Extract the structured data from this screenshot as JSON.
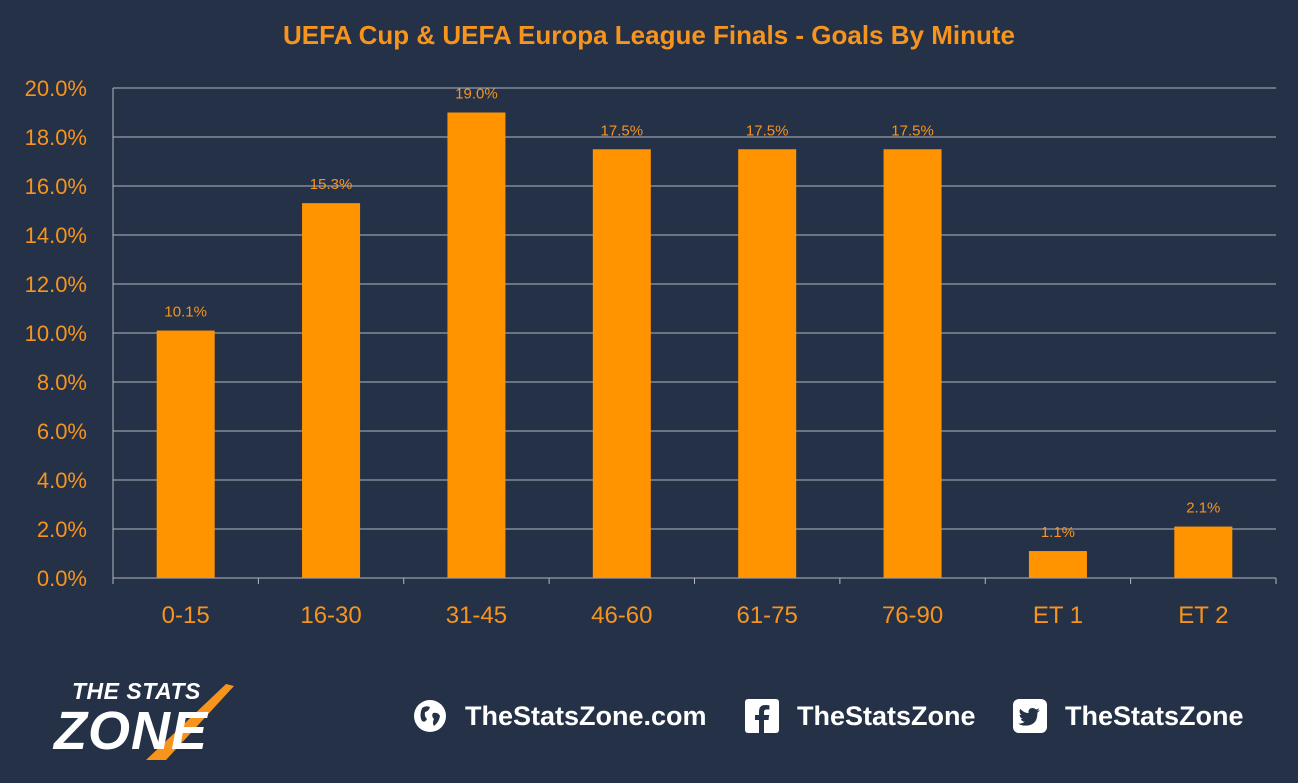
{
  "chart_data": {
    "type": "bar",
    "title": "UEFA Cup & UEFA Europa  League Finals - Goals By Minute",
    "categories": [
      "0-15",
      "16-30",
      "31-45",
      "46-60",
      "61-75",
      "76-90",
      "ET 1",
      "ET 2"
    ],
    "values": [
      10.1,
      15.3,
      19.0,
      17.5,
      17.5,
      17.5,
      1.1,
      2.1
    ],
    "data_labels": [
      "10.1%",
      "15.3%",
      "19.0%",
      "17.5%",
      "17.5%",
      "17.5%",
      "1.1%",
      "2.1%"
    ],
    "yticks": [
      "0.0%",
      "2.0%",
      "4.0%",
      "6.0%",
      "8.0%",
      "10.0%",
      "12.0%",
      "14.0%",
      "16.0%",
      "18.0%",
      "20.0%"
    ],
    "ylim": [
      0,
      20
    ],
    "grid": true,
    "colors": {
      "background": "#253147",
      "bar": "#ff9400",
      "text": "#f7941d",
      "grid": "#b3b8c2"
    }
  },
  "footer": {
    "logo_line1": "THE STATS",
    "logo_line2": "ZONE",
    "website": "TheStatsZone.com",
    "facebook": "TheStatsZone",
    "twitter": "TheStatsZone",
    "icons": [
      "globe-icon",
      "facebook-icon",
      "twitter-icon"
    ]
  }
}
